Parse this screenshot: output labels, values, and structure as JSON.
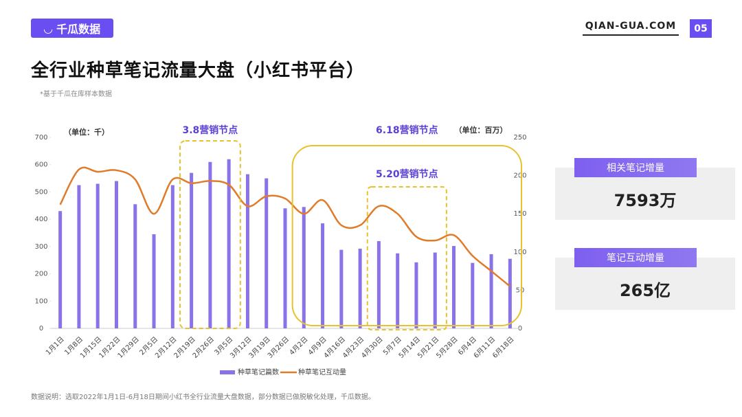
{
  "brand": "千瓜数据",
  "site": "QIAN-GUA.COM",
  "page_number": "05",
  "footnote": "数据说明：选取2022年1月1日-6月18日期间小红书全行业流量大盘数据，部分数据已做脱敏化处理，千瓜数据。",
  "cards": [
    {
      "label": "相关笔记增量",
      "value": "7593万"
    },
    {
      "label": "笔记互动增量",
      "value": "265亿"
    }
  ],
  "chart_data": {
    "type": "bar_line",
    "title": "全行业种草笔记流量大盘（小红书平台）",
    "subtitle": "*基于千瓜在库样本数据",
    "ylabel": "（单位：千）",
    "y2label": "（单位：百万）",
    "annotations": [
      "3.8营销节点",
      "6.18营销节点",
      "5.20营销节点"
    ],
    "categories": [
      "1月1日",
      "1月8日",
      "1月15日",
      "1月22日",
      "1月29日",
      "2月5日",
      "2月12日",
      "2月19日",
      "2月26日",
      "3月5日",
      "3月12日",
      "3月19日",
      "3月26日",
      "4月2日",
      "4月9日",
      "4月16日",
      "4月23日",
      "4月30日",
      "5月7日",
      "5月14日",
      "5月21日",
      "5月28日",
      "6月4日",
      "6月11日",
      "6月18日"
    ],
    "series": [
      {
        "name": "种草笔记篇数",
        "color": "#8a72e8",
        "type": "bar",
        "values": [
          430,
          525,
          530,
          540,
          455,
          345,
          525,
          570,
          610,
          620,
          565,
          550,
          440,
          445,
          385,
          288,
          292,
          320,
          275,
          242,
          278,
          302,
          240,
          272,
          255
        ]
      },
      {
        "name": "种草笔记互动量",
        "color": "#e07b2a",
        "type": "line",
        "axis": "y2",
        "values": [
          162,
          208,
          205,
          207,
          195,
          150,
          195,
          190,
          193,
          188,
          160,
          173,
          170,
          150,
          168,
          135,
          135,
          160,
          150,
          120,
          115,
          122,
          95,
          75,
          55
        ]
      }
    ],
    "ylim": [
      0,
      700
    ],
    "yticks": [
      0,
      100,
      200,
      300,
      400,
      500,
      600,
      700
    ],
    "y2lim": [
      0,
      250
    ],
    "y2ticks": [
      0,
      50,
      100,
      150,
      200,
      250
    ],
    "legend": "bottom",
    "annotation_color": "#e8c22c"
  }
}
